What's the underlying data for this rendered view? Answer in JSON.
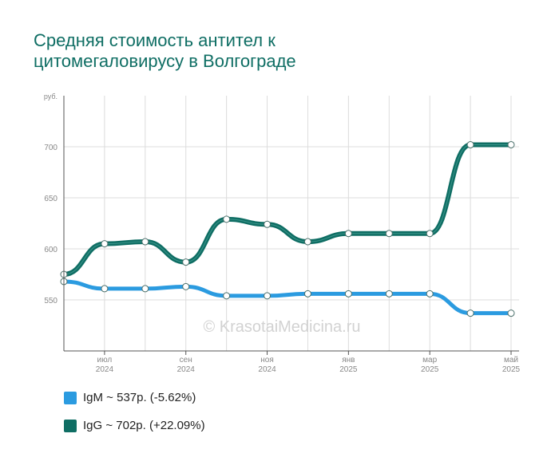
{
  "title_line1": "Средняя стоимость антител к",
  "title_line2": "цитомегаловирусу в Волгограде",
  "watermark": "© KrasotaiMedicina.ru",
  "legend": [
    {
      "label": "IgM ~ 537р. (-5.62%)",
      "color": "#2b9be0"
    },
    {
      "label": "IgG ~ 702р. (+22.09%)",
      "color": "#0f6e64"
    }
  ],
  "chart_data": {
    "type": "line",
    "x": [
      "2024-06",
      "2024-07",
      "2024-08",
      "2024-09",
      "2024-10",
      "2024-11",
      "2024-12",
      "2025-01",
      "2025-02",
      "2025-03",
      "2025-04",
      "2025-05"
    ],
    "x_tick_labels": [
      {
        "index": 1,
        "month": "июл",
        "year": "2024"
      },
      {
        "index": 3,
        "month": "сен",
        "year": "2024"
      },
      {
        "index": 5,
        "month": "ноя",
        "year": "2024"
      },
      {
        "index": 7,
        "month": "янв",
        "year": "2025"
      },
      {
        "index": 9,
        "month": "мар",
        "year": "2025"
      },
      {
        "index": 11,
        "month": "май",
        "year": "2025"
      }
    ],
    "y_unit_label": "руб.",
    "y_ticks": [
      550,
      600,
      650,
      700
    ],
    "ylim": [
      500,
      750
    ],
    "grid": true,
    "legend_position": "bottom-left",
    "series": [
      {
        "name": "IgM",
        "color": "#2b9be0",
        "values": [
          568,
          561,
          561,
          563,
          554,
          554,
          556,
          556,
          556,
          556,
          537,
          537
        ]
      },
      {
        "name": "IgG",
        "color": "#0f6e64",
        "values": [
          575,
          605,
          607,
          587,
          629,
          624,
          607,
          615,
          615,
          615,
          702,
          702
        ]
      }
    ]
  }
}
